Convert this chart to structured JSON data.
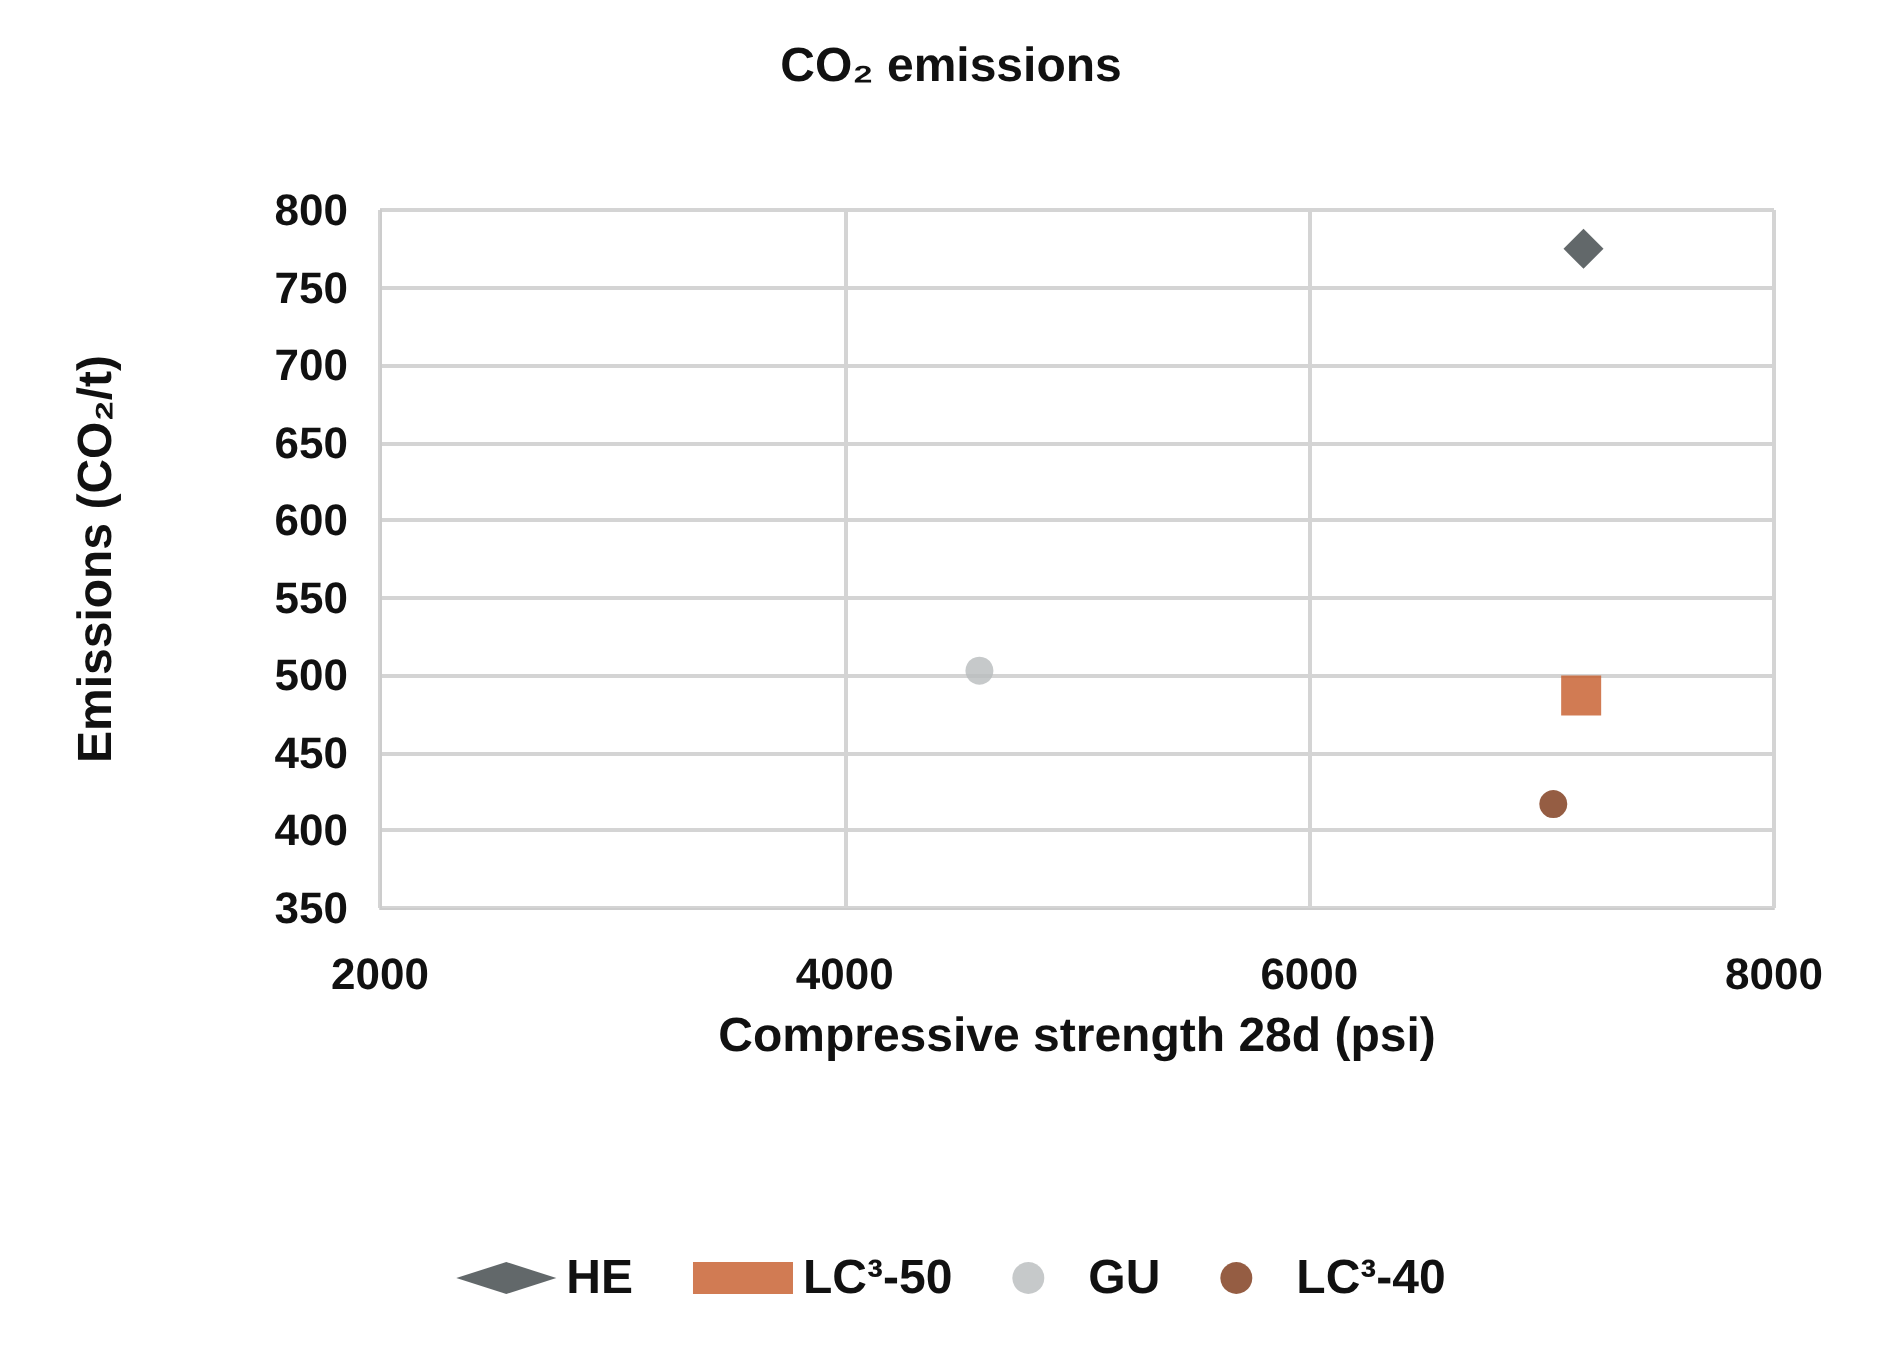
{
  "chart_data": {
    "type": "scatter",
    "title": "CO₂ emissions",
    "xlabel": "Compressive strength 28d (psi)",
    "ylabel": "Emissions (CO₂/t)",
    "series": [
      {
        "name": "HE",
        "color": "#3b4245",
        "marker": "diamond",
        "x": [
          7180
        ],
        "values": [
          775
        ]
      },
      {
        "name": "LC³-50",
        "color": "#c55a28",
        "marker": "square",
        "x": [
          7170
        ],
        "values": [
          487
        ]
      },
      {
        "name": "GU",
        "color": "#b8bbbd",
        "marker": "circle",
        "x": [
          4580
        ],
        "values": [
          503
        ]
      },
      {
        "name": "LC³-40",
        "color": "#7b3514",
        "marker": "circle",
        "x": [
          7050
        ],
        "values": [
          417
        ]
      }
    ],
    "xlim": [
      2000,
      8000
    ],
    "xticks": [
      2000,
      4000,
      6000,
      8000
    ],
    "ylim": [
      350,
      800
    ],
    "yticks": [
      350,
      400,
      450,
      500,
      550,
      600,
      650,
      700,
      750,
      800
    ],
    "grid": true,
    "legend": "bottom"
  }
}
